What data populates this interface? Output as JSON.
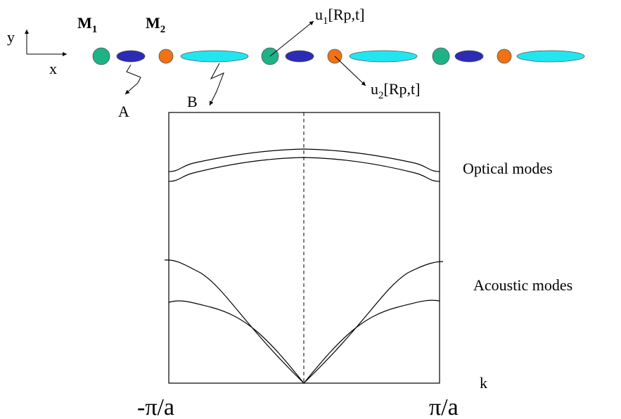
{
  "axes": {
    "y": "y",
    "x": "x"
  },
  "atoms": {
    "m1": {
      "base": "M",
      "sub": "1"
    },
    "m2": {
      "base": "M",
      "sub": "2"
    }
  },
  "displacements": {
    "u1": {
      "base": "u",
      "sub": "1",
      "rest": "[Rp,t]"
    },
    "u2": {
      "base": "u",
      "sub": "2",
      "rest": "[Rp,t]"
    }
  },
  "springs": {
    "a": "A",
    "b": "B"
  },
  "plot": {
    "optical": "Optical modes",
    "acoustic": "Acoustic modes",
    "k": "k",
    "left": "-π/a",
    "right": "π/a"
  }
}
